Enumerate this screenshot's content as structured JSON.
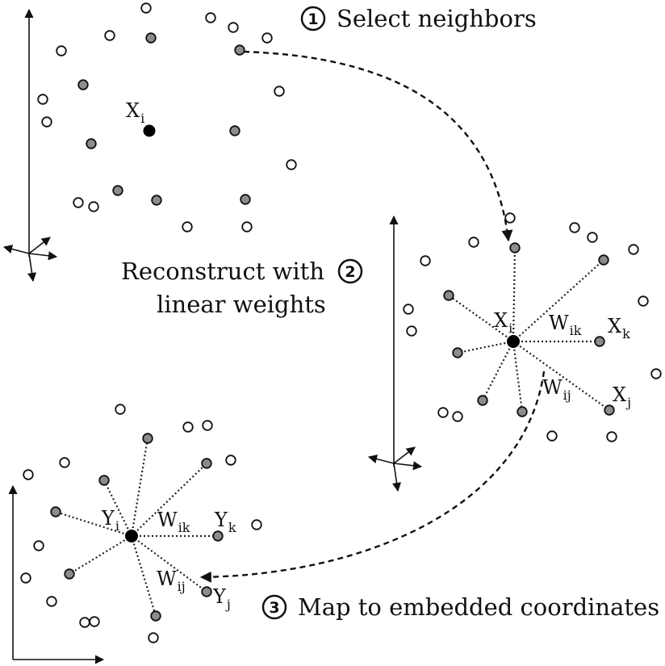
{
  "steps": [
    {
      "number": "1",
      "label": "Select neighbors"
    },
    {
      "number": "2",
      "label_line1": "Reconstruct with",
      "label_line2": "linear weights"
    },
    {
      "number": "3",
      "label": "Map to embedded coordinates"
    }
  ],
  "panel1": {
    "point": {
      "base": "X",
      "sub": "i"
    }
  },
  "panel2": {
    "center": {
      "base": "X",
      "sub": "i"
    },
    "neighbor_k": {
      "base": "X",
      "sub": "k"
    },
    "neighbor_j": {
      "base": "X",
      "sub": "j"
    },
    "weight_k": {
      "base": "W",
      "sub": "ik"
    },
    "weight_j": {
      "base": "W",
      "sub": "ij"
    }
  },
  "panel3": {
    "center": {
      "base": "Y",
      "sub": "i"
    },
    "neighbor_k": {
      "base": "Y",
      "sub": "k"
    },
    "neighbor_j": {
      "base": "Y",
      "sub": "j"
    },
    "weight_k": {
      "base": "W",
      "sub": "ik"
    },
    "weight_j": {
      "base": "W",
      "sub": "ij"
    }
  },
  "colors": {
    "ink": "#111111",
    "neighbor_fill": "#8c8c8c",
    "open_fill": "#ffffff",
    "center_fill": "#000000"
  }
}
